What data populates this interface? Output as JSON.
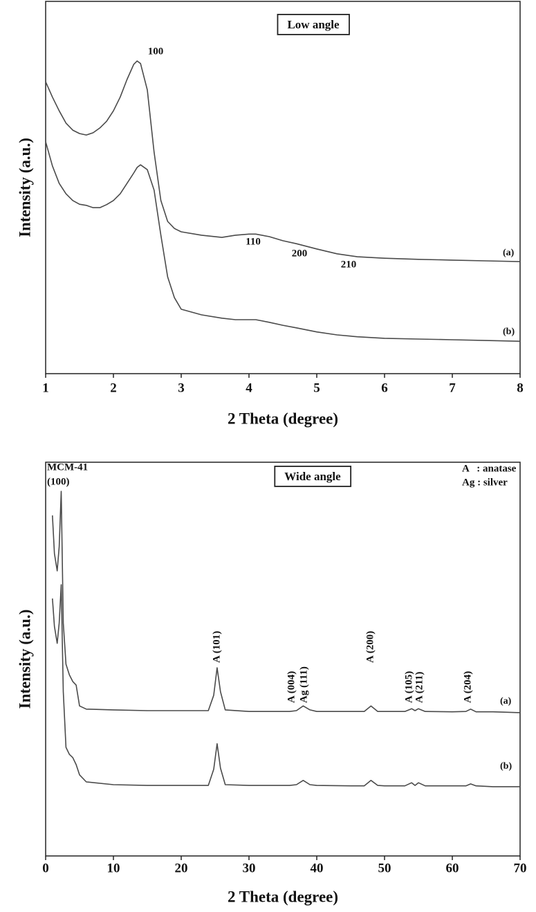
{
  "chart_data": [
    {
      "type": "line",
      "box_label": "Low angle",
      "xlabel": "2 Theta (degree)",
      "ylabel": "Intensity (a.u.)",
      "xlim": [
        1,
        8
      ],
      "xticks": [
        1,
        2,
        3,
        4,
        5,
        6,
        7,
        8
      ],
      "ylim": [
        0,
        100
      ],
      "x": [
        1,
        1.1,
        1.2,
        1.3,
        1.4,
        1.5,
        1.6,
        1.7,
        1.8,
        1.9,
        2.0,
        2.1,
        2.2,
        2.3,
        2.35,
        2.4,
        2.5,
        2.6,
        2.7,
        2.8,
        2.9,
        3.0,
        3.3,
        3.6,
        3.8,
        4.0,
        4.1,
        4.3,
        4.5,
        4.7,
        5.0,
        5.3,
        5.6,
        6.0,
        6.5,
        7.0,
        7.5,
        8.0
      ],
      "series": [
        {
          "name": "(a)",
          "color": "#4a4a4a",
          "values": [
            78.4,
            74.3,
            70.6,
            67.3,
            65.4,
            64.5,
            64.1,
            64.7,
            66.0,
            67.8,
            70.6,
            74.3,
            79.0,
            83.1,
            84.0,
            83.3,
            76.2,
            59.5,
            46.5,
            40.9,
            39.0,
            38.1,
            37.2,
            36.6,
            37.2,
            37.5,
            37.5,
            36.8,
            35.7,
            34.9,
            33.5,
            32.2,
            31.4,
            31.0,
            30.7,
            30.5,
            30.3,
            30.1
          ]
        },
        {
          "name": "(b)",
          "color": "#4a4a4a",
          "values": [
            62.3,
            55.8,
            51.1,
            48.3,
            46.5,
            45.5,
            45.2,
            44.6,
            44.6,
            45.4,
            46.5,
            48.3,
            51.1,
            53.9,
            55.4,
            56.1,
            54.8,
            49.3,
            37.2,
            26.0,
            20.4,
            17.3,
            15.8,
            14.9,
            14.5,
            14.5,
            14.5,
            13.8,
            13.0,
            12.3,
            11.2,
            10.4,
            9.9,
            9.5,
            9.3,
            9.1,
            8.9,
            8.7
          ]
        }
      ],
      "annotations": [
        {
          "text": "100",
          "color": "#111111"
        },
        {
          "text": "110",
          "color": "#111111"
        },
        {
          "text": "200",
          "color": "#111111"
        },
        {
          "text": "210",
          "color": "#111111"
        }
      ]
    },
    {
      "type": "line",
      "box_label": "Wide angle",
      "xlabel": "2 Theta (degree)",
      "ylabel": "Intensity (a.u.)",
      "xlim": [
        0,
        70
      ],
      "xticks": [
        0,
        10,
        20,
        30,
        40,
        50,
        60,
        70
      ],
      "ylim": [
        0,
        100
      ],
      "x": [
        1,
        1.3,
        1.7,
        2.0,
        2.3,
        2.6,
        3,
        3.5,
        4,
        4.5,
        5,
        6,
        10,
        15,
        20,
        24,
        24.8,
        25.3,
        25.8,
        26.5,
        30,
        36,
        37,
        38,
        39,
        40,
        45,
        47,
        48,
        49,
        50,
        53,
        54,
        54.5,
        55,
        56,
        60,
        62,
        62.7,
        63.5,
        66,
        70
      ],
      "series": [
        {
          "name": "(a)",
          "color": "#4a4a4a",
          "values": [
            86.5,
            76.8,
            72.4,
            78.6,
            92.6,
            59.2,
            48.7,
            46.0,
            44.3,
            43.4,
            38.1,
            37.3,
            37.1,
            36.9,
            36.9,
            36.9,
            40.8,
            47.8,
            41.7,
            37.1,
            36.7,
            36.7,
            36.9,
            38.1,
            37.1,
            36.7,
            36.7,
            36.7,
            38.1,
            36.7,
            36.7,
            36.7,
            37.4,
            36.9,
            37.4,
            36.7,
            36.6,
            36.7,
            37.3,
            36.6,
            36.6,
            36.4
          ]
        },
        {
          "name": "(b)",
          "color": "#4a4a4a",
          "values": [
            65.4,
            58.3,
            54.0,
            59.2,
            68.9,
            41.7,
            27.6,
            25.8,
            25.0,
            23.2,
            20.6,
            18.8,
            18.1,
            17.9,
            17.9,
            17.9,
            22.0,
            28.5,
            22.3,
            18.1,
            17.9,
            17.9,
            18.1,
            19.2,
            18.1,
            17.9,
            17.8,
            17.8,
            19.2,
            17.9,
            17.8,
            17.8,
            18.6,
            17.9,
            18.6,
            17.8,
            17.8,
            17.8,
            18.3,
            17.8,
            17.6,
            17.6
          ]
        }
      ],
      "annotations": [
        {
          "text": "MCM-41",
          "color": "#111111"
        },
        {
          "text": "(100)",
          "color": "#111111"
        },
        {
          "text": "A (101)",
          "color": "#2c3a86"
        },
        {
          "text": "A (004)",
          "color": "#2c3a86"
        },
        {
          "text": "Ag (111)",
          "color": "#3d7d22"
        },
        {
          "text": "A (200)",
          "color": "#2c3a86"
        },
        {
          "text": "A (105)",
          "color": "#2c3a86"
        },
        {
          "text": "A (211)",
          "color": "#2c3a86"
        },
        {
          "text": "A (204)",
          "color": "#2c3a86"
        }
      ],
      "legend": [
        {
          "text": "A   : anatase",
          "color": "#2c3a86"
        },
        {
          "text": "Ag : silver",
          "color": "#3d7d22"
        }
      ]
    }
  ]
}
